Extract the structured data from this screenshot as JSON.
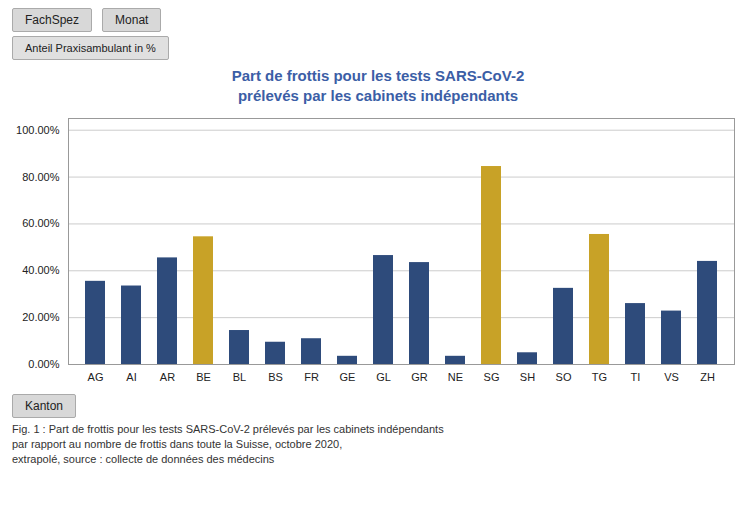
{
  "chart_data": {
    "type": "bar",
    "title": "Part de frottis pour les tests SARS-CoV-2",
    "subtitle": "prélevés par les cabinets indépendants",
    "categories": [
      "AG",
      "AI",
      "AR",
      "BE",
      "BL",
      "BS",
      "FR",
      "GE",
      "GL",
      "GR",
      "NE",
      "SG",
      "SH",
      "SO",
      "TG",
      "TI",
      "VS",
      "ZH"
    ],
    "values": [
      0.355,
      0.335,
      0.455,
      0.545,
      0.145,
      0.095,
      0.11,
      0.035,
      0.465,
      0.435,
      0.035,
      0.845,
      0.05,
      0.325,
      0.555,
      0.26,
      0.228,
      0.44
    ],
    "colors": [
      "#2E4B7B",
      "#2E4B7B",
      "#2E4B7B",
      "#C8A227",
      "#2E4B7B",
      "#2E4B7B",
      "#2E4B7B",
      "#2E4B7B",
      "#2E4B7B",
      "#2E4B7B",
      "#2E4B7B",
      "#C8A227",
      "#2E4B7B",
      "#2E4B7B",
      "#C8A227",
      "#2E4B7B",
      "#2E4B7B",
      "#2E4B7B"
    ],
    "ylim": [
      0,
      1.05
    ],
    "yticks": [
      {
        "value": 0.0,
        "label": "0.00%"
      },
      {
        "value": 0.2,
        "label": "20.00%"
      },
      {
        "value": 0.4,
        "label": "40.00%"
      },
      {
        "value": 0.6,
        "label": "60.00%"
      },
      {
        "value": 0.8,
        "label": "80.00%"
      },
      {
        "value": 1.0,
        "label": "100.00%"
      }
    ],
    "grid": true,
    "annotations": [
      "FachSpez",
      "Monat",
      "Anteil Praxisambulant in %",
      "Kanton"
    ],
    "caption": "Fig. 1 : Part de frottis pour les tests SARS-CoV-2 prélevés par les cabinets indépendants\npar rapport au nombre de frottis dans toute la Suisse, octobre 2020,\nextrapolé, source : collecte de données des médecins"
  }
}
